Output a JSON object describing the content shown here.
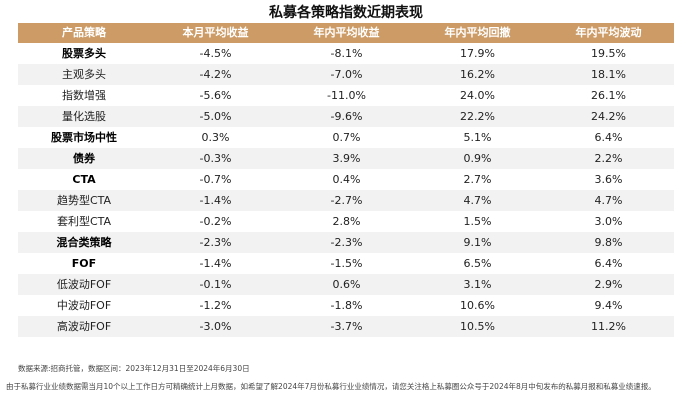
{
  "title": "私募各策略指数近期表现",
  "table": {
    "headers": [
      "产品策略",
      "本月平均收益",
      "年内平均收益",
      "年内平均回撤",
      "年内平均波动"
    ],
    "rows": [
      {
        "name": "股票多头",
        "bold": true,
        "month_return": "-4.5%",
        "ytd_return": "-8.1%",
        "ytd_drawdown": "17.9%",
        "ytd_volatility": "19.5%"
      },
      {
        "name": "主观多头",
        "bold": false,
        "month_return": "-4.2%",
        "ytd_return": "-7.0%",
        "ytd_drawdown": "16.2%",
        "ytd_volatility": "18.1%"
      },
      {
        "name": "指数增强",
        "bold": false,
        "month_return": "-5.6%",
        "ytd_return": "-11.0%",
        "ytd_drawdown": "24.0%",
        "ytd_volatility": "26.1%"
      },
      {
        "name": "量化选股",
        "bold": false,
        "month_return": "-5.0%",
        "ytd_return": "-9.6%",
        "ytd_drawdown": "22.2%",
        "ytd_volatility": "24.2%"
      },
      {
        "name": "股票市场中性",
        "bold": true,
        "month_return": "0.3%",
        "ytd_return": "0.7%",
        "ytd_drawdown": "5.1%",
        "ytd_volatility": "6.4%"
      },
      {
        "name": "债券",
        "bold": true,
        "month_return": "-0.3%",
        "ytd_return": "3.9%",
        "ytd_drawdown": "0.9%",
        "ytd_volatility": "2.2%"
      },
      {
        "name": "CTA",
        "bold": true,
        "month_return": "-0.7%",
        "ytd_return": "0.4%",
        "ytd_drawdown": "2.7%",
        "ytd_volatility": "3.6%"
      },
      {
        "name": "趋势型CTA",
        "bold": false,
        "month_return": "-1.4%",
        "ytd_return": "-2.7%",
        "ytd_drawdown": "4.7%",
        "ytd_volatility": "4.7%"
      },
      {
        "name": "套利型CTA",
        "bold": false,
        "month_return": "-0.2%",
        "ytd_return": "2.8%",
        "ytd_drawdown": "1.5%",
        "ytd_volatility": "3.0%"
      },
      {
        "name": "混合类策略",
        "bold": true,
        "month_return": "-2.3%",
        "ytd_return": "-2.3%",
        "ytd_drawdown": "9.1%",
        "ytd_volatility": "9.8%"
      },
      {
        "name": "FOF",
        "bold": true,
        "month_return": "-1.4%",
        "ytd_return": "-1.5%",
        "ytd_drawdown": "6.5%",
        "ytd_volatility": "6.4%"
      },
      {
        "name": "低波动FOF",
        "bold": false,
        "month_return": "-0.1%",
        "ytd_return": "0.6%",
        "ytd_drawdown": "3.1%",
        "ytd_volatility": "2.9%"
      },
      {
        "name": "中波动FOF",
        "bold": false,
        "month_return": "-1.2%",
        "ytd_return": "-1.8%",
        "ytd_drawdown": "10.6%",
        "ytd_volatility": "9.4%"
      },
      {
        "name": "高波动FOF",
        "bold": false,
        "month_return": "-3.0%",
        "ytd_return": "-3.7%",
        "ytd_drawdown": "10.5%",
        "ytd_volatility": "11.2%"
      }
    ]
  },
  "footnote_source": "数据来源:招商托管，数据区间：2023年12月31日至2024年6月30日",
  "footnote_note": "由于私募行业业绩数据需当月10个以上工作日方可精确统计上月数据，如希望了解2024年7月份私募行业业绩情况，请您关注格上私募圈公众号于2024年8月中旬发布的私募月报和私募业绩速报。"
}
